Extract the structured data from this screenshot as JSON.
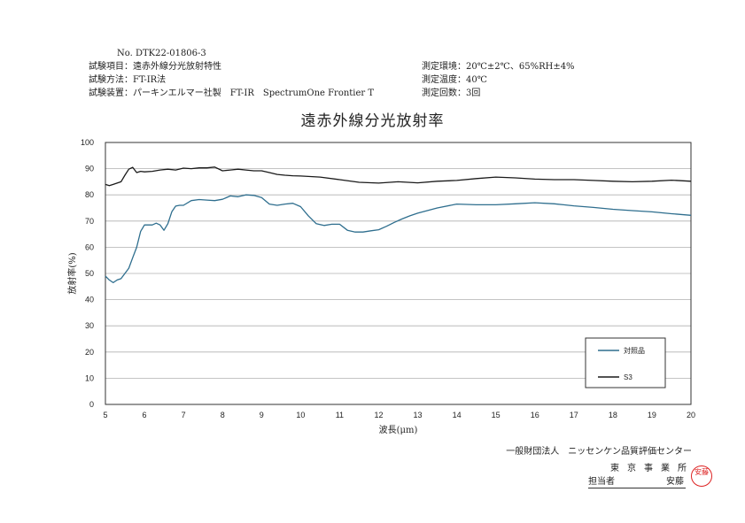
{
  "header": {
    "doc_no": "No. DTK22-01806-3",
    "test_item": "試験項目：遠赤外線分光放射特性",
    "test_method": "試験方法：FT-IR法",
    "test_device": "試験装置：パーキンエルマー社製　FT-IR　SpectrumOne Frontier T",
    "env": "測定環境：20℃±2℃、65%RH±4%",
    "temp": "測定温度：40℃",
    "count": "測定回数：3回"
  },
  "footer": {
    "org": "一般財団法人　ニッセンケン品質評価センター",
    "office": "東京事業所",
    "person_label": "担当者",
    "person_name": "安藤",
    "seal_text": "安藤"
  },
  "colors": {
    "sample": "#2e6e8e",
    "s3": "#1a1a1a",
    "grid": "#b0b0b0"
  },
  "chart_data": {
    "type": "line",
    "title": "遠赤外線分光放射率",
    "xlabel": "波長(μm)",
    "ylabel": "放射率(%)",
    "xlim": [
      5,
      20
    ],
    "ylim": [
      0,
      100
    ],
    "xticks": [
      "5",
      "6",
      "7",
      "8",
      "9",
      "10",
      "11",
      "12",
      "13",
      "14",
      "15",
      "16",
      "17",
      "18",
      "19",
      "20"
    ],
    "yticks": [
      "0",
      "10",
      "20",
      "30",
      "40",
      "50",
      "60",
      "70",
      "80",
      "90",
      "100"
    ],
    "grid": "horizontal",
    "legend_position": "bottom-right",
    "series": [
      {
        "name": "対照品",
        "color": "#2e6e8e",
        "x": [
          5.0,
          5.1,
          5.2,
          5.3,
          5.4,
          5.5,
          5.6,
          5.7,
          5.8,
          5.9,
          6.0,
          6.1,
          6.2,
          6.3,
          6.4,
          6.5,
          6.6,
          6.7,
          6.8,
          6.9,
          7.0,
          7.2,
          7.4,
          7.6,
          7.8,
          8.0,
          8.2,
          8.4,
          8.6,
          8.8,
          9.0,
          9.2,
          9.4,
          9.6,
          9.8,
          10.0,
          10.2,
          10.4,
          10.6,
          10.8,
          11.0,
          11.2,
          11.4,
          11.6,
          11.8,
          12.0,
          12.2,
          12.4,
          12.6,
          12.8,
          13.0,
          13.5,
          14.0,
          14.5,
          15.0,
          15.5,
          16.0,
          16.5,
          17.0,
          17.5,
          18.0,
          18.5,
          19.0,
          19.5,
          20.0
        ],
        "y": [
          49,
          47.5,
          46.5,
          47.5,
          48,
          50,
          52,
          56,
          60,
          66,
          68.5,
          68.5,
          68.5,
          69.2,
          68.5,
          66.5,
          69,
          73.5,
          75.7,
          76,
          76,
          77.8,
          78.2,
          78,
          77.8,
          78.3,
          79.6,
          79.3,
          80,
          79.8,
          79,
          76.5,
          76,
          76.5,
          76.8,
          75.5,
          72,
          69,
          68.3,
          68.8,
          68.8,
          66.5,
          65.8,
          65.8,
          66.3,
          66.7,
          68,
          69.5,
          70.8,
          72,
          73,
          75,
          76.5,
          76.2,
          76.2,
          76.6,
          77,
          76.6,
          75.8,
          75.2,
          74.5,
          74,
          73.5,
          72.8,
          72.2
        ]
      },
      {
        "name": "S3",
        "color": "#1a1a1a",
        "x": [
          5.0,
          5.1,
          5.2,
          5.3,
          5.4,
          5.5,
          5.6,
          5.7,
          5.75,
          5.8,
          5.9,
          6.0,
          6.2,
          6.4,
          6.6,
          6.8,
          7.0,
          7.2,
          7.4,
          7.6,
          7.8,
          8.0,
          8.2,
          8.4,
          8.6,
          8.8,
          9.0,
          9.2,
          9.4,
          9.6,
          9.8,
          10.0,
          10.5,
          11.0,
          11.5,
          12.0,
          12.5,
          13.0,
          13.5,
          14.0,
          14.5,
          15.0,
          15.5,
          16.0,
          16.5,
          17.0,
          17.5,
          18.0,
          18.5,
          19.0,
          19.5,
          20.0
        ],
        "y": [
          84,
          83.5,
          84,
          84.5,
          85,
          87.5,
          89.8,
          90.5,
          89.5,
          88.5,
          89,
          88.8,
          89,
          89.5,
          89.8,
          89.5,
          90.2,
          90,
          90.3,
          90.3,
          90.6,
          89.2,
          89.5,
          89.8,
          89.5,
          89.2,
          89.2,
          88.5,
          87.8,
          87.5,
          87.3,
          87.2,
          86.8,
          85.8,
          84.8,
          84.5,
          85,
          84.6,
          85.2,
          85.5,
          86.2,
          86.8,
          86.5,
          86,
          85.8,
          85.8,
          85.5,
          85.2,
          85,
          85.2,
          85.6,
          85.2
        ]
      }
    ]
  }
}
